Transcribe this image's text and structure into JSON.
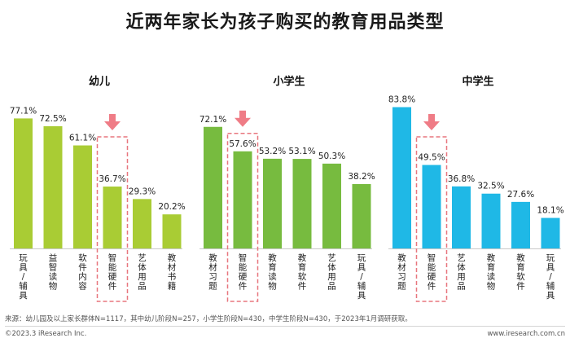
{
  "title": "近两年家长为孩子购买的教育用品类型",
  "chart_data": [
    {
      "type": "bar",
      "title": "幼儿",
      "color": "#a9cc34",
      "categories": [
        "玩具/辅具",
        "益智读物",
        "软件内容",
        "智能硬件",
        "艺体用品",
        "教材书籍"
      ],
      "values": [
        77.1,
        72.5,
        61.1,
        36.7,
        29.3,
        20.2
      ],
      "labels": [
        "77.1%",
        "72.5%",
        "61.1%",
        "36.7%",
        "29.3%",
        "20.2%"
      ],
      "highlight": "智能硬件",
      "ylim": [
        0,
        100
      ]
    },
    {
      "type": "bar",
      "title": "小学生",
      "color": "#77bb3f",
      "categories": [
        "教材习题",
        "智能硬件",
        "教育读物",
        "教育软件",
        "艺体用品",
        "玩具/辅具"
      ],
      "values": [
        72.1,
        57.6,
        53.2,
        53.1,
        50.3,
        38.2
      ],
      "labels": [
        "72.1%",
        "57.6%",
        "53.2%",
        "53.1%",
        "50.3%",
        "38.2%"
      ],
      "highlight": "智能硬件",
      "ylim": [
        0,
        100
      ]
    },
    {
      "type": "bar",
      "title": "中学生",
      "color": "#1fb8e6",
      "categories": [
        "教材习题",
        "智能硬件",
        "艺体用品",
        "教育读物",
        "教育软件",
        "玩具/辅具"
      ],
      "values": [
        83.8,
        49.5,
        36.8,
        32.5,
        27.6,
        18.1
      ],
      "labels": [
        "83.8%",
        "49.5%",
        "36.8%",
        "32.5%",
        "27.6%",
        "18.1%"
      ],
      "highlight": "智能硬件",
      "ylim": [
        0,
        100
      ]
    }
  ],
  "colors": {
    "highlight_box": "#e8767e",
    "arrow": "#ef7c86",
    "axis": "#c8c8c8"
  },
  "source": "来源：幼儿园及以上家长群体N=1117，其中幼儿阶段N=257，小学生阶段N=430，中学生阶段N=430，于2023年1月调研获取。",
  "copyright": "©2023.3 iResearch Inc.",
  "website": "www.iresearch.com.cn"
}
